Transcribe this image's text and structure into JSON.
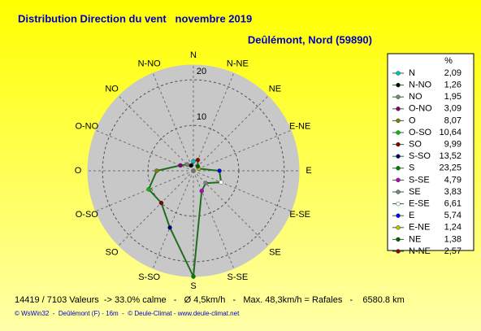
{
  "chart_data": {
    "type": "radar",
    "title": "Distribution Direction du vent   novembre 2019",
    "subtitle": "Deûlémont, Nord (59890)",
    "categories": [
      "N",
      "N-NO",
      "NO",
      "O-NO",
      "O",
      "O-SO",
      "SO",
      "S-SO",
      "S",
      "S-SE",
      "SE",
      "E-SE",
      "E",
      "E-NE",
      "NE",
      "N-NE"
    ],
    "values": [
      2.09,
      1.26,
      1.95,
      3.09,
      8.07,
      10.64,
      9.99,
      13.52,
      23.25,
      4.79,
      3.83,
      6.61,
      5.74,
      1.24,
      1.38,
      2.57
    ],
    "value_labels": [
      "2,09",
      "1,26",
      "1,95",
      "3,09",
      "8,07",
      "10,64",
      "9,99",
      "13,52",
      "23,25",
      "4,79",
      "3,83",
      "6,61",
      "5,74",
      "1,24",
      "1,38",
      "2,57"
    ],
    "colors": [
      "#00c0c0",
      "#000000",
      "#808080",
      "#800080",
      "#808000",
      "#00c000",
      "#800000",
      "#000080",
      "#008000",
      "#c000c0",
      "#808080",
      "#ffffff",
      "#0000ff",
      "#c0c000",
      "#006000",
      "#a00000"
    ],
    "line_color": "#1f6e1f",
    "rlim": [
      0,
      23.25
    ],
    "rticks": [
      10,
      20
    ],
    "legend_title": "%",
    "footer": "14419 / 7103 Valeurs  -> 33.0% calme   -   Ø 4,5km/h   -   Max. 48,3km/h = Rafales   -    6580.8 km",
    "credit": "© WsWin32  -  Deûlémont (F) - 16m  -  © Deule-Climat - www.deule-climat.net"
  }
}
